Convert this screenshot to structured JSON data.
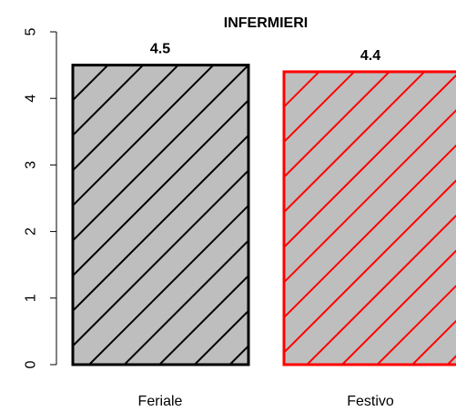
{
  "chart_data": {
    "type": "bar",
    "title": "INFERMIERI",
    "categories": [
      "Feriale",
      "Festivo"
    ],
    "values": [
      4.5,
      4.4
    ],
    "data_labels": [
      "4.5",
      "4.4"
    ],
    "bar_fill": "#bebebe",
    "bar_border_colors": [
      "#000000",
      "#ff0000"
    ],
    "hatch": "diagonal",
    "ylim": [
      0,
      5
    ],
    "yticks": [
      0,
      1,
      2,
      3,
      4,
      5
    ],
    "ytick_labels": [
      "0",
      "1",
      "2",
      "3",
      "4",
      "5"
    ],
    "xlabel": "",
    "ylabel": "",
    "grid": false
  }
}
